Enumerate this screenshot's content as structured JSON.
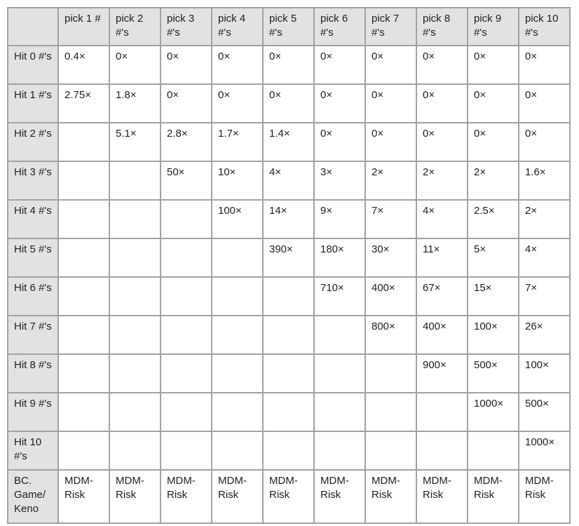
{
  "colors": {
    "header_bg": "#e2e2e2",
    "cell_bg": "#ffffff",
    "border": "#a2a2a2",
    "text": "#212121"
  },
  "table": {
    "columns": [
      "",
      "pick 1 #",
      "pick 2 #'s",
      "pick 3 #'s",
      "pick 4 #'s",
      "pick 5 #'s",
      "pick 6 #'s",
      "pick 7 #'s",
      "pick 8 #'s",
      "pick 9 #'s",
      "pick 10 #'s"
    ],
    "rows": [
      {
        "label": "Hit 0 #'s",
        "cells": [
          "0.4×",
          "0×",
          "0×",
          "0×",
          "0×",
          "0×",
          "0×",
          "0×",
          "0×",
          "0×"
        ]
      },
      {
        "label": "Hit 1 #'s",
        "cells": [
          "2.75×",
          "1.8×",
          "0×",
          "0×",
          "0×",
          "0×",
          "0×",
          "0×",
          "0×",
          "0×"
        ]
      },
      {
        "label": "Hit 2 #'s",
        "cells": [
          "",
          "5.1×",
          "2.8×",
          "1.7×",
          "1.4×",
          "0×",
          "0×",
          "0×",
          "0×",
          "0×"
        ]
      },
      {
        "label": "Hit 3 #'s",
        "cells": [
          "",
          "",
          "50×",
          "10×",
          "4×",
          "3×",
          "2×",
          "2×",
          "2×",
          "1.6×"
        ]
      },
      {
        "label": "Hit 4 #'s",
        "cells": [
          "",
          "",
          "",
          "100×",
          "14×",
          "9×",
          "7×",
          "4×",
          "2.5×",
          "2×"
        ]
      },
      {
        "label": "Hit 5 #'s",
        "cells": [
          "",
          "",
          "",
          "",
          "390×",
          "180×",
          "30×",
          "11×",
          "5×",
          "4×"
        ]
      },
      {
        "label": "Hit 6 #'s",
        "cells": [
          "",
          "",
          "",
          "",
          "",
          "710×",
          "400×",
          "67×",
          "15×",
          "7×"
        ]
      },
      {
        "label": "Hit 7 #'s",
        "cells": [
          "",
          "",
          "",
          "",
          "",
          "",
          "800×",
          "400×",
          "100×",
          "26×"
        ]
      },
      {
        "label": "Hit 8 #'s",
        "cells": [
          "",
          "",
          "",
          "",
          "",
          "",
          "",
          "900×",
          "500×",
          "100×"
        ]
      },
      {
        "label": "Hit 9 #'s",
        "cells": [
          "",
          "",
          "",
          "",
          "",
          "",
          "",
          "",
          "1000×",
          "500×"
        ]
      },
      {
        "label": "Hit 10 #'s",
        "cells": [
          "",
          "",
          "",
          "",
          "",
          "",
          "",
          "",
          "",
          "1000×"
        ]
      },
      {
        "label": "BC. Game/ Keno",
        "cells": [
          "MDM-Risk",
          "MDM-Risk",
          "MDM-Risk",
          "MDM-Risk",
          "MDM-Risk",
          "MDM-Risk",
          "MDM-Risk",
          "MDM-Risk",
          "MDM-Risk",
          "MDM-Risk"
        ],
        "footer": true
      }
    ]
  }
}
